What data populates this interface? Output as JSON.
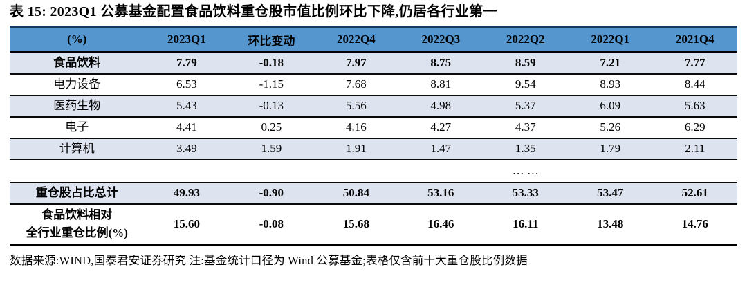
{
  "page": {
    "title": "表 15:  2023Q1 公募基金配置食品饮料重仓股市值比例环比下降,仍居各行业第一",
    "source_note": "数据来源:WIND,国泰君安证券研究  注:基金统计口径为 Wind 公募基金;表格仅含前十大重仓股比例数据"
  },
  "colors": {
    "header_bg": "#5596CF",
    "band_row_bg": "#DDE4F0",
    "table_top_border": "#17375E",
    "rule_color": "#000000"
  },
  "chart_data": {
    "type": "table",
    "title": "2023Q1 公募基金配置食品饮料重仓股市值比例环比下降,仍居各行业第一",
    "unit": "(%)",
    "columns": [
      "(%)",
      "2023Q1",
      "环比变动",
      "2022Q4",
      "2022Q3",
      "2022Q2",
      "2022Q1",
      "2021Q4"
    ],
    "rows": [
      {
        "label": "食品饮料",
        "values": [
          "7.79",
          "-0.18",
          "7.97",
          "8.75",
          "8.59",
          "7.21",
          "7.77"
        ],
        "bold": true,
        "band": true,
        "ellipsis": false,
        "tall": false
      },
      {
        "label": "电力设备",
        "values": [
          "6.53",
          "-1.15",
          "7.68",
          "8.81",
          "9.54",
          "8.93",
          "8.44"
        ],
        "bold": false,
        "band": false,
        "ellipsis": false,
        "tall": false
      },
      {
        "label": "医药生物",
        "values": [
          "5.43",
          "-0.13",
          "5.56",
          "4.98",
          "5.37",
          "6.09",
          "5.63"
        ],
        "bold": false,
        "band": true,
        "ellipsis": false,
        "tall": false
      },
      {
        "label": "电子",
        "values": [
          "4.41",
          "0.25",
          "4.16",
          "4.27",
          "4.37",
          "5.26",
          "6.29"
        ],
        "bold": false,
        "band": false,
        "ellipsis": false,
        "tall": false
      },
      {
        "label": "计算机",
        "values": [
          "3.49",
          "1.59",
          "1.91",
          "1.47",
          "1.35",
          "1.79",
          "2.11"
        ],
        "bold": false,
        "band": true,
        "ellipsis": false,
        "tall": false
      },
      {
        "label": "",
        "values": [
          "",
          "",
          "",
          "",
          "… …",
          "",
          ""
        ],
        "bold": false,
        "band": false,
        "ellipsis": true,
        "tall": false
      },
      {
        "label": "重仓股占比总计",
        "values": [
          "49.93",
          "-0.90",
          "50.84",
          "53.16",
          "53.33",
          "53.47",
          "52.61"
        ],
        "bold": true,
        "band": true,
        "ellipsis": false,
        "tall": false
      },
      {
        "label": "食品饮料相对\n全行业重仓比例(%)",
        "values": [
          "15.60",
          "-0.08",
          "15.68",
          "16.46",
          "16.11",
          "13.48",
          "14.76"
        ],
        "bold": true,
        "band": false,
        "ellipsis": false,
        "tall": true
      }
    ]
  }
}
